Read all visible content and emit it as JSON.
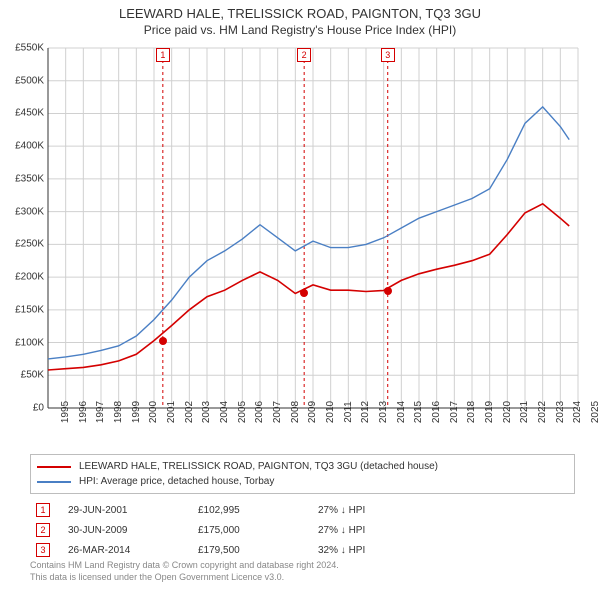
{
  "title": "LEEWARD HALE, TRELISSICK ROAD, PAIGNTON, TQ3 3GU",
  "subtitle": "Price paid vs. HM Land Registry's House Price Index (HPI)",
  "chart": {
    "type": "line",
    "background_color": "#ffffff",
    "grid_color": "#d0d0d0",
    "axis_color": "#333333",
    "x_years": [
      1995,
      1996,
      1997,
      1998,
      1999,
      2000,
      2001,
      2002,
      2003,
      2004,
      2005,
      2006,
      2007,
      2008,
      2009,
      2010,
      2011,
      2012,
      2013,
      2014,
      2015,
      2016,
      2017,
      2018,
      2019,
      2020,
      2021,
      2022,
      2023,
      2024,
      2025
    ],
    "y_ticks": [
      0,
      50000,
      100000,
      150000,
      200000,
      250000,
      300000,
      350000,
      400000,
      450000,
      500000,
      550000
    ],
    "y_tick_labels": [
      "£0",
      "£50K",
      "£100K",
      "£150K",
      "£200K",
      "£250K",
      "£300K",
      "£350K",
      "£400K",
      "£450K",
      "£500K",
      "£550K"
    ],
    "ylim": [
      0,
      550000
    ],
    "xlim": [
      1995,
      2025
    ],
    "label_fontsize": 10,
    "series": [
      {
        "key": "hpi",
        "color": "#4a7fc4",
        "line_width": 1.4,
        "points": [
          [
            1995,
            75000
          ],
          [
            1996,
            78000
          ],
          [
            1997,
            82000
          ],
          [
            1998,
            88000
          ],
          [
            1999,
            95000
          ],
          [
            2000,
            110000
          ],
          [
            2001,
            135000
          ],
          [
            2002,
            165000
          ],
          [
            2003,
            200000
          ],
          [
            2004,
            225000
          ],
          [
            2005,
            240000
          ],
          [
            2006,
            258000
          ],
          [
            2007,
            280000
          ],
          [
            2008,
            260000
          ],
          [
            2009,
            240000
          ],
          [
            2010,
            255000
          ],
          [
            2011,
            245000
          ],
          [
            2012,
            245000
          ],
          [
            2013,
            250000
          ],
          [
            2014,
            260000
          ],
          [
            2015,
            275000
          ],
          [
            2016,
            290000
          ],
          [
            2017,
            300000
          ],
          [
            2018,
            310000
          ],
          [
            2019,
            320000
          ],
          [
            2020,
            335000
          ],
          [
            2021,
            380000
          ],
          [
            2022,
            435000
          ],
          [
            2023,
            460000
          ],
          [
            2024,
            430000
          ],
          [
            2024.5,
            410000
          ]
        ]
      },
      {
        "key": "property",
        "color": "#d40000",
        "line_width": 1.6,
        "points": [
          [
            1995,
            58000
          ],
          [
            1996,
            60000
          ],
          [
            1997,
            62000
          ],
          [
            1998,
            66000
          ],
          [
            1999,
            72000
          ],
          [
            2000,
            82000
          ],
          [
            2001,
            102995
          ],
          [
            2002,
            126000
          ],
          [
            2003,
            150000
          ],
          [
            2004,
            170000
          ],
          [
            2005,
            180000
          ],
          [
            2006,
            195000
          ],
          [
            2007,
            208000
          ],
          [
            2008,
            195000
          ],
          [
            2009,
            175000
          ],
          [
            2010,
            188000
          ],
          [
            2011,
            180000
          ],
          [
            2012,
            180000
          ],
          [
            2013,
            178000
          ],
          [
            2014,
            179500
          ],
          [
            2015,
            195000
          ],
          [
            2016,
            205000
          ],
          [
            2017,
            212000
          ],
          [
            2018,
            218000
          ],
          [
            2019,
            225000
          ],
          [
            2020,
            235000
          ],
          [
            2021,
            265000
          ],
          [
            2022,
            298000
          ],
          [
            2023,
            312000
          ],
          [
            2024,
            290000
          ],
          [
            2024.5,
            278000
          ]
        ]
      }
    ],
    "sale_markers": [
      {
        "n": "1",
        "year": 2001.5,
        "value": 102995,
        "date": "29-JUN-2001",
        "price": "£102,995",
        "delta": "27% ↓ HPI"
      },
      {
        "n": "2",
        "year": 2009.5,
        "value": 175000,
        "date": "30-JUN-2009",
        "price": "£175,000",
        "delta": "27% ↓ HPI"
      },
      {
        "n": "3",
        "year": 2014.23,
        "value": 179500,
        "date": "26-MAR-2014",
        "price": "£179,500",
        "delta": "32% ↓ HPI"
      }
    ],
    "marker_border_color": "#d40000",
    "marker_line_color": "#d40000",
    "marker_line_dash": "3,3",
    "marker_bg": "#ffffff",
    "sale_point_fill": "#d40000"
  },
  "legend": {
    "items": [
      {
        "color": "#d40000",
        "label": "LEEWARD HALE, TRELISSICK ROAD, PAIGNTON, TQ3 3GU (detached house)"
      },
      {
        "color": "#4a7fc4",
        "label": "HPI: Average price, detached house, Torbay"
      }
    ]
  },
  "footnote": {
    "line1": "Contains HM Land Registry data © Crown copyright and database right 2024.",
    "line2": "This data is licensed under the Open Government Licence v3.0."
  }
}
